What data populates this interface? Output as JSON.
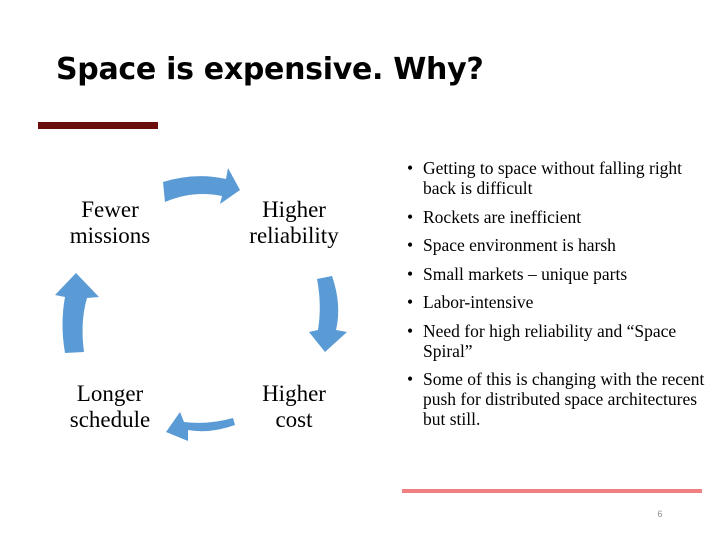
{
  "slide": {
    "title": "Space is expensive. Why?",
    "page_number": "6",
    "colors": {
      "title_bar": "#6b0d0d",
      "bottom_bar": "#f08080",
      "arrow_fill": "#5b9bd5",
      "text": "#000000"
    }
  },
  "cycle": {
    "nodes": [
      {
        "line1": "Higher",
        "line2": "reliability"
      },
      {
        "line1": "Higher",
        "line2": "cost"
      },
      {
        "line1": "Longer",
        "line2": "schedule"
      },
      {
        "line1": "Fewer",
        "line2": "missions"
      }
    ],
    "arrow_icon": "curved-arrow-icon"
  },
  "bullets": [
    "Getting to space without falling right back is difficult",
    "Rockets are inefficient",
    "Space environment is harsh",
    "Small markets – unique parts",
    "Labor-intensive",
    "Need for high reliability and “Space Spiral”",
    "Some of this is changing with the recent push for distributed space architectures but still."
  ]
}
